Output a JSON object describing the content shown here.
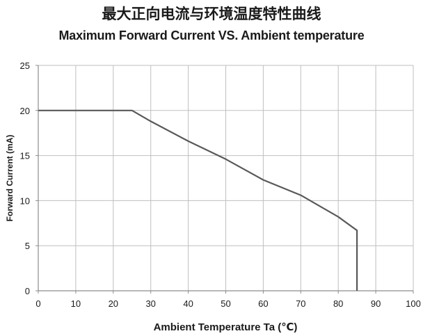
{
  "title_cn": "最大正向电流与环境温度特性曲线",
  "title_en": "Maximum Forward Current VS. Ambient temperature",
  "chart_data": {
    "type": "line",
    "title": "Maximum Forward Current VS. Ambient temperature",
    "subtitle": "最大正向电流与环境温度特性曲线",
    "xlabel": "Ambient  Temperature  Ta (℃)",
    "ylabel": "Forward Current (mA)",
    "xlim": [
      0,
      100
    ],
    "ylim": [
      0,
      25
    ],
    "x_ticks": [
      0,
      10,
      20,
      30,
      40,
      50,
      60,
      70,
      80,
      90,
      100
    ],
    "y_ticks": [
      0,
      5,
      10,
      15,
      20,
      25
    ],
    "grid": true,
    "legend": "none",
    "series": [
      {
        "x": [
          0,
          25,
          30,
          40,
          50,
          60,
          70,
          80,
          85,
          85
        ],
        "y": [
          20,
          20,
          18.8,
          16.6,
          14.6,
          12.3,
          10.6,
          8.2,
          6.7,
          0
        ],
        "color": "#595959"
      }
    ]
  },
  "colors": {
    "grid": "#bfbfbf",
    "axis": "#8c8c8c",
    "line": "#595959"
  }
}
